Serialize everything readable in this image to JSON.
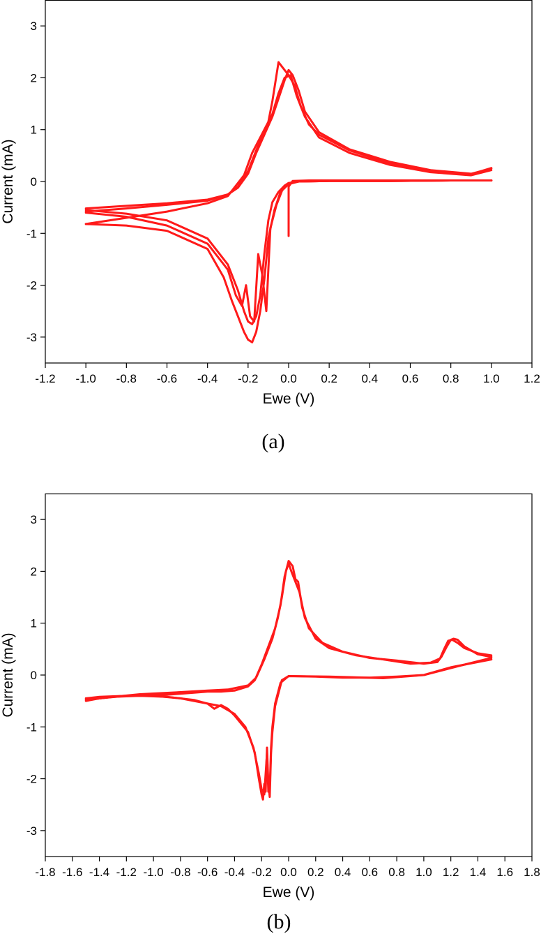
{
  "colors": {
    "series": "#ff1a1a",
    "axis": "#000000",
    "background": "#ffffff"
  },
  "chart_data": [
    {
      "type": "line",
      "caption": "(a)",
      "xlabel": "Ewe (V)",
      "ylabel": "Current (mA)",
      "xlim": [
        -1.2,
        1.2
      ],
      "ylim": [
        -3.5,
        3.5
      ],
      "xticks": [
        -1.2,
        -1.0,
        -0.8,
        -0.6,
        -0.4,
        -0.2,
        0.0,
        0.2,
        0.4,
        0.6,
        0.8,
        1.0,
        1.2
      ],
      "xtick_labels": [
        "-1.2",
        "-1.0",
        "-0.8",
        "-0.6",
        "-0.4",
        "-0.2",
        "0.0",
        "0.2",
        "0.4",
        "0.6",
        "0.8",
        "1.0",
        "1.2"
      ],
      "yticks": [
        -3,
        -2,
        -1,
        0,
        1,
        2,
        3
      ],
      "ytick_labels": [
        "-3",
        "-2",
        "-1",
        "0",
        "1",
        "2",
        "3"
      ],
      "grid": false,
      "legend": "none",
      "series": [
        {
          "x": [
            0.0,
            0.0,
            0.02,
            0.1,
            0.3,
            0.5,
            0.7,
            0.9,
            1.0
          ],
          "y": [
            -1.05,
            -0.1,
            0.01,
            0.02,
            0.02,
            0.02,
            0.02,
            0.02,
            0.02
          ]
        },
        {
          "x": [
            1.0,
            0.9,
            0.7,
            0.5,
            0.3,
            0.15,
            0.08,
            0.05,
            0.02,
            0.0,
            -0.02,
            -0.05,
            -0.08,
            -0.12,
            -0.16,
            -0.2,
            -0.25,
            -0.3,
            -0.4,
            -0.6,
            -0.8,
            -1.0
          ],
          "y": [
            0.25,
            0.15,
            0.22,
            0.38,
            0.62,
            0.95,
            1.35,
            1.75,
            2.05,
            2.15,
            1.95,
            1.6,
            1.25,
            0.9,
            0.55,
            0.15,
            -0.12,
            -0.25,
            -0.35,
            -0.42,
            -0.47,
            -0.52
          ]
        },
        {
          "x": [
            -1.0,
            -0.8,
            -0.6,
            -0.4,
            -0.3,
            -0.25,
            -0.22,
            -0.2,
            -0.18,
            -0.16,
            -0.14,
            -0.12,
            -0.1,
            -0.08,
            -0.05,
            -0.02,
            0.0,
            0.05,
            0.2,
            0.5,
            0.8,
            1.0
          ],
          "y": [
            -0.55,
            -0.62,
            -0.75,
            -1.1,
            -1.6,
            -2.1,
            -2.5,
            -2.7,
            -2.75,
            -2.6,
            -2.2,
            -1.4,
            -0.75,
            -0.4,
            -0.2,
            -0.08,
            -0.03,
            0.0,
            0.01,
            0.01,
            0.02,
            0.02
          ]
        },
        {
          "x": [
            1.0,
            0.9,
            0.7,
            0.5,
            0.3,
            0.15,
            0.08,
            0.04,
            0.01,
            -0.02,
            -0.05,
            -0.08,
            -0.12,
            -0.16,
            -0.2,
            -0.25,
            -0.3,
            -0.4,
            -0.6,
            -0.8,
            -1.0
          ],
          "y": [
            0.22,
            0.12,
            0.18,
            0.32,
            0.55,
            0.85,
            1.25,
            1.65,
            2.05,
            2.0,
            1.7,
            1.3,
            0.95,
            0.6,
            0.2,
            -0.1,
            -0.25,
            -0.37,
            -0.45,
            -0.52,
            -0.58
          ]
        },
        {
          "x": [
            -1.0,
            -0.8,
            -0.6,
            -0.4,
            -0.3,
            -0.26,
            -0.23,
            -0.21,
            -0.19,
            -0.17,
            -0.15,
            -0.13,
            -0.11,
            -0.09,
            -0.06,
            -0.03,
            0.0,
            0.05,
            0.2,
            0.5,
            0.8,
            1.0
          ],
          "y": [
            -0.6,
            -0.68,
            -0.85,
            -1.2,
            -1.7,
            -2.2,
            -2.4,
            -2.0,
            -2.6,
            -2.7,
            -1.4,
            -1.8,
            -2.5,
            -0.9,
            -0.45,
            -0.15,
            -0.03,
            0.0,
            0.01,
            0.01,
            0.02,
            0.02
          ]
        },
        {
          "x": [
            1.0,
            0.9,
            0.7,
            0.5,
            0.3,
            0.15,
            0.1,
            0.06,
            0.03,
            0.0,
            -0.03,
            -0.05,
            -0.08,
            -0.1,
            -0.14,
            -0.18,
            -0.22,
            -0.3,
            -0.4,
            -0.6,
            -0.8,
            -1.0
          ],
          "y": [
            0.26,
            0.14,
            0.2,
            0.35,
            0.6,
            0.9,
            1.1,
            1.45,
            1.85,
            2.05,
            2.2,
            2.3,
            1.55,
            1.15,
            0.85,
            0.55,
            0.12,
            -0.28,
            -0.42,
            -0.58,
            -0.7,
            -0.82
          ]
        },
        {
          "x": [
            -1.0,
            -0.8,
            -0.6,
            -0.4,
            -0.32,
            -0.28,
            -0.25,
            -0.22,
            -0.2,
            -0.18,
            -0.16,
            -0.14,
            -0.12,
            -0.1,
            -0.07,
            -0.04,
            0.0,
            0.05,
            0.2,
            0.5,
            0.8,
            1.0
          ],
          "y": [
            -0.82,
            -0.85,
            -0.95,
            -1.3,
            -1.85,
            -2.3,
            -2.6,
            -2.9,
            -3.05,
            -3.1,
            -2.9,
            -2.5,
            -1.9,
            -1.1,
            -0.55,
            -0.2,
            -0.05,
            0.0,
            0.01,
            0.01,
            0.02,
            0.02
          ]
        }
      ]
    },
    {
      "type": "line",
      "caption": "(b)",
      "xlabel": "Ewe (V)",
      "ylabel": "Current (mA)",
      "xlim": [
        -1.8,
        1.8
      ],
      "ylim": [
        -3.5,
        3.5
      ],
      "xticks": [
        -1.8,
        -1.6,
        -1.4,
        -1.2,
        -1.0,
        -0.8,
        -0.6,
        -0.4,
        -0.2,
        0.0,
        0.2,
        0.4,
        0.6,
        0.8,
        1.0,
        1.2,
        1.4,
        1.6,
        1.8
      ],
      "xtick_labels": [
        "-1.8",
        "-1.6",
        "-1.4",
        "-1.2",
        "-1.0",
        "-0.8",
        "-0.6",
        "-0.4",
        "-0.2",
        "0.0",
        "0.2",
        "0.4",
        "0.6",
        "0.8",
        "1.0",
        "1.2",
        "1.4",
        "1.6",
        "1.8"
      ],
      "yticks": [
        -3,
        -2,
        -1,
        0,
        1,
        2,
        3
      ],
      "ytick_labels": [
        "-3",
        "-2",
        "-1",
        "0",
        "1",
        "2",
        "3"
      ],
      "grid": false,
      "legend": "none",
      "series": [
        {
          "x": [
            1.5,
            1.4,
            1.3,
            1.25,
            1.22,
            1.2,
            1.17,
            1.13,
            1.1,
            1.0,
            0.8,
            0.6,
            0.4,
            0.25,
            0.15,
            0.1,
            0.07,
            0.05,
            0.03,
            0.0,
            -0.03,
            -0.06,
            -0.1,
            -0.15,
            -0.2,
            -0.25,
            -0.3,
            -0.4,
            -0.5,
            -0.6,
            -0.7,
            -0.9,
            -1.2,
            -1.4,
            -1.5
          ],
          "y": [
            0.35,
            0.4,
            0.55,
            0.68,
            0.7,
            0.68,
            0.55,
            0.35,
            0.25,
            0.22,
            0.28,
            0.33,
            0.45,
            0.62,
            0.9,
            1.3,
            1.8,
            1.85,
            2.1,
            2.2,
            1.9,
            1.35,
            0.9,
            0.55,
            0.2,
            -0.1,
            -0.22,
            -0.3,
            -0.32,
            -0.32,
            -0.34,
            -0.38,
            -0.4,
            -0.45,
            -0.5
          ]
        },
        {
          "x": [
            -1.5,
            -1.4,
            -1.2,
            -1.0,
            -0.8,
            -0.6,
            -0.55,
            -0.5,
            -0.45,
            -0.4,
            -0.3,
            -0.25,
            -0.22,
            -0.2,
            -0.19,
            -0.18,
            -0.17,
            -0.16,
            -0.15,
            -0.14,
            -0.13,
            -0.12,
            -0.1,
            -0.05,
            0.0,
            0.2,
            0.4,
            0.6,
            0.8,
            1.0,
            1.2,
            1.4,
            1.5
          ],
          "y": [
            -0.45,
            -0.42,
            -0.4,
            -0.4,
            -0.45,
            -0.55,
            -0.65,
            -0.58,
            -0.65,
            -0.78,
            -1.1,
            -1.5,
            -2.0,
            -2.3,
            -2.4,
            -2.1,
            -2.25,
            -1.4,
            -2.1,
            -2.35,
            -1.5,
            -1.1,
            -0.6,
            -0.1,
            -0.02,
            -0.03,
            -0.05,
            -0.05,
            -0.03,
            0.0,
            0.15,
            0.25,
            0.3
          ]
        },
        {
          "x": [
            1.5,
            1.4,
            1.3,
            1.25,
            1.21,
            1.18,
            1.15,
            1.12,
            1.05,
            0.9,
            0.7,
            0.5,
            0.3,
            0.2,
            0.12,
            0.08,
            0.05,
            0.02,
            0.0,
            -0.02,
            -0.05,
            -0.08,
            -0.12,
            -0.18,
            -0.24,
            -0.3,
            -0.45,
            -0.6,
            -0.8,
            -1.1,
            -1.3,
            -1.5
          ],
          "y": [
            0.38,
            0.42,
            0.52,
            0.62,
            0.68,
            0.66,
            0.5,
            0.32,
            0.24,
            0.22,
            0.3,
            0.38,
            0.52,
            0.7,
            1.1,
            1.6,
            1.8,
            2.0,
            2.15,
            2.0,
            1.5,
            1.1,
            0.7,
            0.3,
            -0.05,
            -0.2,
            -0.28,
            -0.3,
            -0.33,
            -0.37,
            -0.42,
            -0.48
          ]
        },
        {
          "x": [
            -1.5,
            -1.3,
            -1.1,
            -0.9,
            -0.7,
            -0.6,
            -0.5,
            -0.4,
            -0.32,
            -0.26,
            -0.22,
            -0.2,
            -0.18,
            -0.16,
            -0.15,
            -0.14,
            -0.13,
            -0.12,
            -0.1,
            -0.06,
            0.0,
            0.3,
            0.7,
            1.0,
            1.3,
            1.5
          ],
          "y": [
            -0.48,
            -0.42,
            -0.4,
            -0.42,
            -0.48,
            -0.55,
            -0.6,
            -0.75,
            -1.0,
            -1.4,
            -1.9,
            -2.2,
            -2.3,
            -1.5,
            -2.25,
            -2.2,
            -1.4,
            -1.0,
            -0.55,
            -0.15,
            -0.02,
            -0.03,
            -0.06,
            0.0,
            0.2,
            0.33
          ]
        }
      ]
    }
  ]
}
